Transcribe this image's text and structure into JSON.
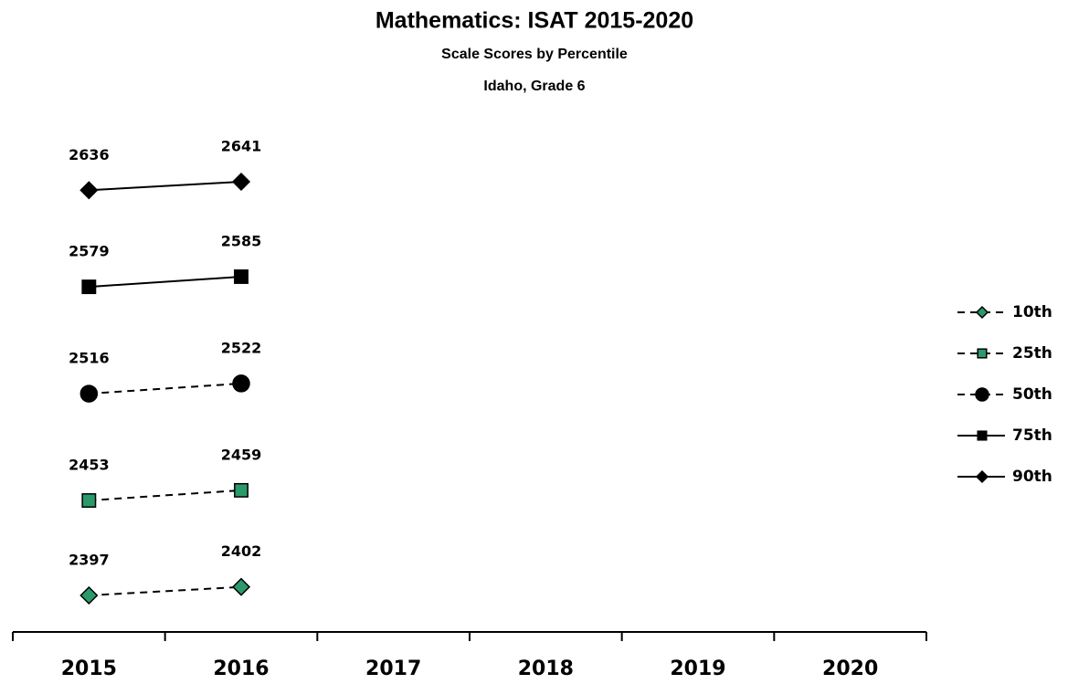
{
  "chart_data": {
    "type": "line",
    "title": "Mathematics:  ISAT 2015-2020",
    "subtitle": "Scale Scores by Percentile",
    "subtitle2": "Idaho, Grade 6",
    "categories": [
      "2015",
      "2016",
      "2017",
      "2018",
      "2019",
      "2020"
    ],
    "series": [
      {
        "name": "10th",
        "color": "#2a9a6a",
        "marker": "diamond",
        "line_style": "dashed",
        "values": [
          2397,
          2402,
          null,
          null,
          null,
          null
        ]
      },
      {
        "name": "25th",
        "color": "#2a9a6a",
        "marker": "square",
        "line_style": "dashed",
        "values": [
          2453,
          2459,
          null,
          null,
          null,
          null
        ]
      },
      {
        "name": "50th",
        "color": "#000000",
        "marker": "circle",
        "line_style": "dashed",
        "values": [
          2516,
          2522,
          null,
          null,
          null,
          null
        ]
      },
      {
        "name": "75th",
        "color": "#000000",
        "marker": "square",
        "line_style": "solid",
        "values": [
          2579,
          2585,
          null,
          null,
          null,
          null
        ]
      },
      {
        "name": "90th",
        "color": "#000000",
        "marker": "diamond",
        "line_style": "solid",
        "values": [
          2636,
          2641,
          null,
          null,
          null,
          null
        ]
      }
    ]
  }
}
